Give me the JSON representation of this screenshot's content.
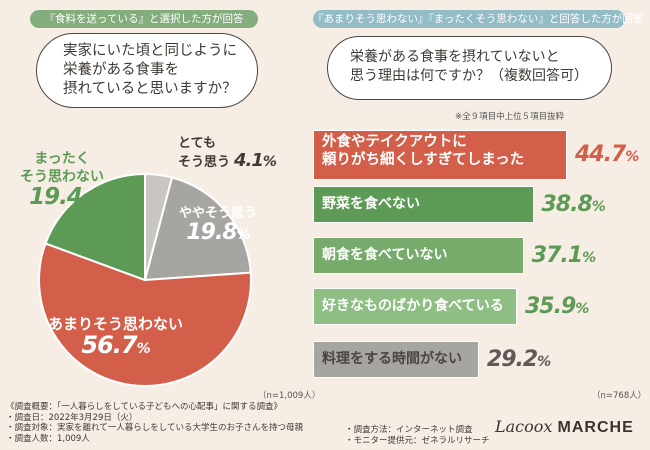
{
  "left": {
    "tag": "『食料を送っている』と選択した方が回答",
    "question": [
      "実家にいた頃と同じように",
      "栄養がある食事を",
      "摂れていると思いますか？"
    ],
    "n_label": "（n=1,009人）"
  },
  "right": {
    "tag": "『あまりそう思わない』『まったくそう思わない』と回答した方が回答",
    "question": [
      "栄養がある食事を摂れていないと",
      "思う理由は何ですか？（複数回答可）"
    ],
    "excerpt_note": "※全９項目中上位５項目抜粋",
    "n_label": "（n=768人）"
  },
  "chart_data": [
    {
      "type": "pie",
      "categories": [
        "とてもそう思う",
        "ややそう思う",
        "あまりそう思わない",
        "まったくそう思わない"
      ],
      "values": [
        4.1,
        19.8,
        56.7,
        19.4
      ],
      "value_labels": [
        "4.1%",
        "19.8%",
        "56.7%",
        "19.4%"
      ],
      "colors": [
        "#c9c6c2",
        "#a7a5a2",
        "#d35f4b",
        "#5d9a56"
      ],
      "label_colors": [
        "#3f3a36",
        "#ffffff",
        "#ffffff",
        "#5d9a56"
      ],
      "label_lines": [
        [
          "とても",
          "そう思う"
        ],
        [
          "ややそう思う"
        ],
        [
          "あまりそう思わない"
        ],
        [
          "まったく",
          "そう思わない"
        ]
      ]
    },
    {
      "type": "bar",
      "orientation": "horizontal",
      "categories": [
        "外食やテイクアウトに頼りがち細くしすぎてしまった",
        "野菜を食べない",
        "朝食を食べていない",
        "好きなものばかり食べている",
        "料理をする時間がない"
      ],
      "values": [
        44.7,
        38.8,
        37.1,
        35.9,
        29.2
      ],
      "value_labels": [
        "44.7%",
        "38.8%",
        "37.1%",
        "35.9%",
        "29.2%"
      ],
      "colors": [
        "#d35f4b",
        "#5d9a56",
        "#76ab6b",
        "#8ebe84",
        "#a7a5a2"
      ],
      "value_colors": [
        "#d35f4b",
        "#5d9a56",
        "#5d9a56",
        "#5d9a56",
        "#5e5a57"
      ],
      "label_lines": [
        [
          "外食やテイクアウトに",
          "頼りがち細くしすぎてしまった"
        ],
        [
          "野菜を食べない"
        ],
        [
          "朝食を食べていない"
        ],
        [
          "好きなものばかり食べている"
        ],
        [
          "料理をする時間がない"
        ]
      ]
    }
  ],
  "footer": {
    "left": [
      "《調査概要：「一人暮らしをしている子どもへの心配事」に関する調査》",
      "・調査日：2022年3月29日（火）",
      "・調査対象：実家を離れて一人暮らしをしている大学生のお子さんを持つ母親",
      "・調査人数：1,009人"
    ],
    "right": [
      "・調査方法：インターネット調査",
      "・モニター提供元：ゼネラルリサーチ"
    ]
  },
  "logo": {
    "part1": "Lacoox",
    "part2": "MARCHE"
  }
}
